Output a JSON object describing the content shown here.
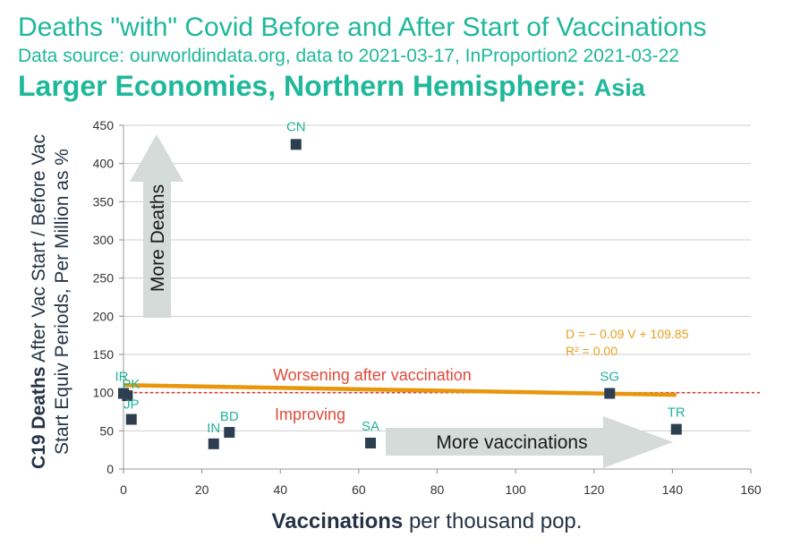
{
  "header": {
    "title": "Deaths \"with\" Covid Before and After Start of Vaccinations",
    "source": "Data source: ourworldindata.org, data to 2021-03-17, InProportion2 2021-03-22",
    "subtitle_main": "Larger Economies, Northern Hemisphere:",
    "subtitle_region": "Asia"
  },
  "chart_data": {
    "type": "scatter",
    "xlabel_bold": "Vaccinations",
    "xlabel_rest": " per thousand pop.",
    "ylabel_bold": "C19 Deaths",
    "ylabel_rest_1": " After Vac Start / Before Vac",
    "ylabel_rest_2": "Start Equiv Periods, Per Million as %",
    "xlim": [
      0,
      160
    ],
    "ylim": [
      0,
      450
    ],
    "xticks": [
      0,
      20,
      40,
      60,
      80,
      100,
      120,
      140,
      160
    ],
    "yticks": [
      0,
      50,
      100,
      150,
      200,
      250,
      300,
      350,
      400,
      450
    ],
    "grid": "horizontal",
    "points": [
      {
        "label": "CN",
        "x": 44,
        "y": 425
      },
      {
        "label": "IR",
        "x": 0,
        "y": 99
      },
      {
        "label": "PK",
        "x": 1,
        "y": 96
      },
      {
        "label": "JP",
        "x": 2,
        "y": 65
      },
      {
        "label": "IN",
        "x": 23,
        "y": 33
      },
      {
        "label": "BD",
        "x": 27,
        "y": 48
      },
      {
        "label": "SA",
        "x": 63,
        "y": 34
      },
      {
        "label": "SG",
        "x": 124,
        "y": 99
      },
      {
        "label": "TR",
        "x": 141,
        "y": 52
      }
    ],
    "trendline": {
      "slope": -0.09,
      "intercept": 109.85,
      "x_range": [
        0,
        141
      ],
      "color": "#e8960c"
    },
    "reference_line": {
      "y": 100,
      "color": "#e03a2a"
    },
    "equation": "D = − 0.09 V + 109.85",
    "r2": "R² = 0.00",
    "annotations": {
      "worsening": "Worsening after vaccination",
      "improving": "Improving",
      "more_deaths": "More Deaths",
      "more_vaccinations": "More vaccinations"
    },
    "colors": {
      "marker": "#2c3e50",
      "label": "#22b39a",
      "title": "#1fb89a",
      "arrow": "#d5dbd8"
    }
  }
}
